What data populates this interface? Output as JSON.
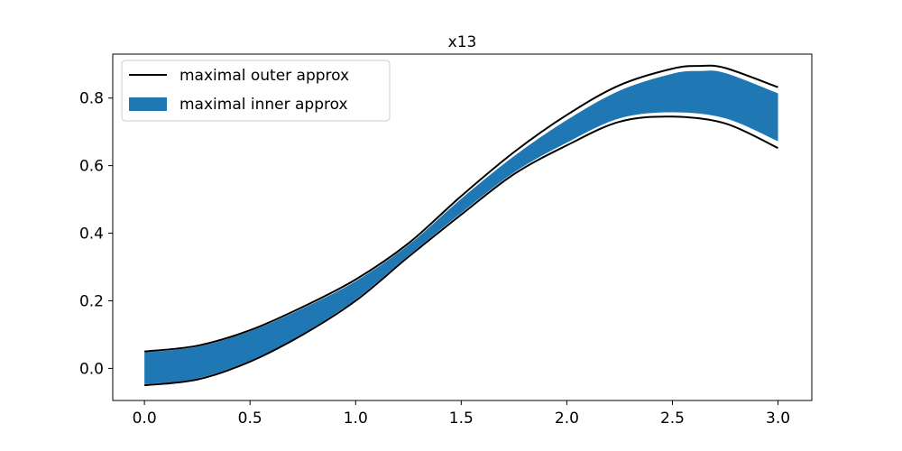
{
  "chart_data": {
    "type": "area",
    "title": "x13",
    "xlabel": "",
    "ylabel": "",
    "xlim": [
      -0.15,
      3.16
    ],
    "ylim": [
      -0.095,
      0.93
    ],
    "xticks": [
      0.0,
      0.5,
      1.0,
      1.5,
      2.0,
      2.5,
      3.0
    ],
    "xtick_labels": [
      "0.0",
      "0.5",
      "1.0",
      "1.5",
      "2.0",
      "2.5",
      "3.0"
    ],
    "yticks": [
      0.0,
      0.2,
      0.4,
      0.6,
      0.8
    ],
    "ytick_labels": [
      "0.0",
      "0.2",
      "0.4",
      "0.6",
      "0.8"
    ],
    "grid": false,
    "legend": {
      "placement": "top-left",
      "entries": [
        {
          "label": "maximal outer approx",
          "kind": "line",
          "color": "#000000"
        },
        {
          "label": "maximal inner approx",
          "kind": "patch",
          "color": "#1f77b4"
        }
      ]
    },
    "series": [
      {
        "name": "maximal outer approx",
        "role": "outer-upper",
        "color": "#000000",
        "x": [
          0.0,
          0.25,
          0.5,
          0.75,
          1.0,
          1.25,
          1.5,
          1.75,
          2.0,
          2.25,
          2.5,
          2.63,
          2.75,
          3.0
        ],
        "y": [
          0.05,
          0.067,
          0.113,
          0.182,
          0.263,
          0.37,
          0.51,
          0.64,
          0.75,
          0.838,
          0.887,
          0.895,
          0.889,
          0.832
        ]
      },
      {
        "name": "maximal outer approx",
        "role": "outer-lower",
        "color": "#000000",
        "x": [
          0.0,
          0.25,
          0.5,
          0.75,
          1.0,
          1.25,
          1.5,
          1.75,
          2.0,
          2.25,
          2.5,
          2.75,
          3.0
        ],
        "y": [
          -0.05,
          -0.033,
          0.02,
          0.1,
          0.2,
          0.33,
          0.455,
          0.575,
          0.66,
          0.73,
          0.745,
          0.725,
          0.652
        ]
      },
      {
        "name": "maximal inner approx",
        "role": "inner-upper",
        "color": "#1f77b4",
        "x": [
          0.0,
          0.25,
          0.5,
          0.75,
          1.0,
          1.25,
          1.5,
          1.75,
          2.0,
          2.25,
          2.5,
          2.63,
          2.75,
          3.0
        ],
        "y": [
          0.047,
          0.064,
          0.11,
          0.178,
          0.258,
          0.365,
          0.502,
          0.628,
          0.735,
          0.822,
          0.872,
          0.88,
          0.874,
          0.814
        ]
      },
      {
        "name": "maximal inner approx",
        "role": "inner-lower",
        "color": "#1f77b4",
        "x": [
          0.0,
          0.25,
          0.5,
          0.75,
          1.0,
          1.25,
          1.5,
          1.75,
          2.0,
          2.25,
          2.5,
          2.75,
          3.0
        ],
        "y": [
          -0.047,
          -0.03,
          0.023,
          0.103,
          0.204,
          0.334,
          0.46,
          0.58,
          0.668,
          0.74,
          0.758,
          0.74,
          0.672
        ]
      }
    ]
  }
}
